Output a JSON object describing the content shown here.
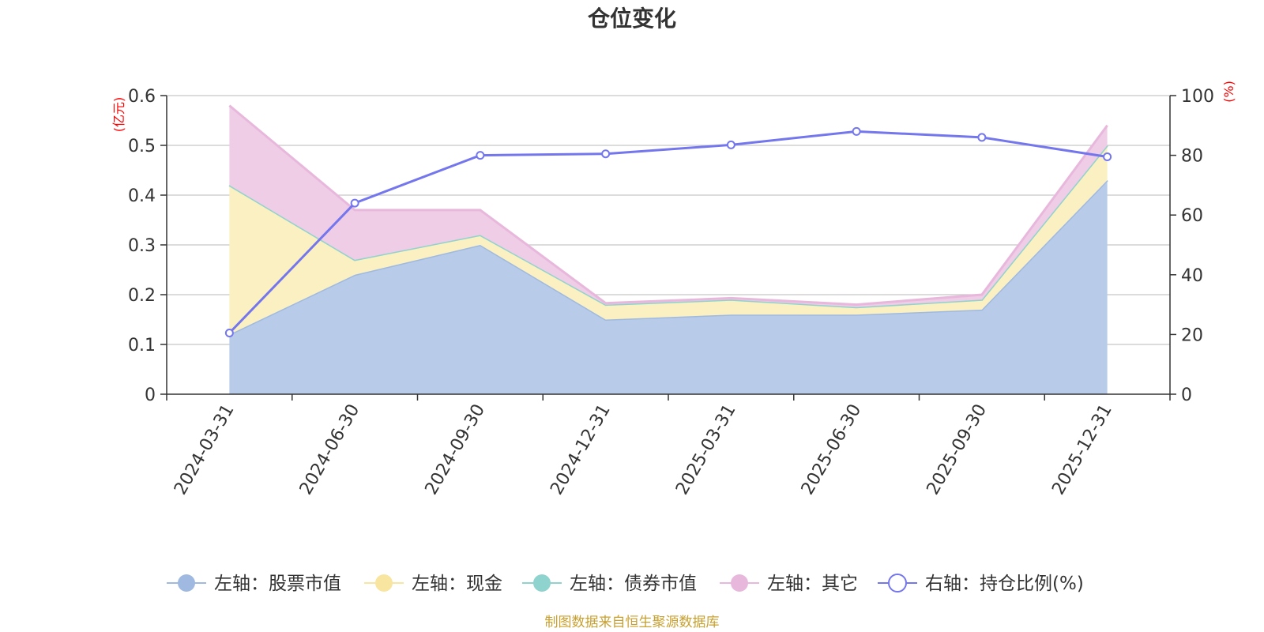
{
  "chart_data": {
    "type": "area",
    "title": "仓位变化",
    "categories": [
      "2024-03-31",
      "2024-06-30",
      "2024-09-30",
      "2024-12-31",
      "2025-03-31",
      "2025-06-30",
      "2025-09-30",
      "2025-12-31"
    ],
    "left_axis": {
      "unit": "(亿元)",
      "ylim": [
        0,
        0.6
      ],
      "ticks": [
        "0",
        "0.1",
        "0.2",
        "0.3",
        "0.4",
        "0.5",
        "0.6"
      ],
      "tick_values": [
        0,
        0.1,
        0.2,
        0.3,
        0.4,
        0.5,
        0.6
      ]
    },
    "right_axis": {
      "unit": "(%)",
      "ylim": [
        0,
        100
      ],
      "ticks": [
        "0",
        "20",
        "40",
        "60",
        "80",
        "100"
      ],
      "tick_values": [
        0,
        20,
        40,
        60,
        80,
        100
      ]
    },
    "series": [
      {
        "name": "左轴：股票市值",
        "axis": "left",
        "kind": "stacked-area",
        "color": "#9fb9e0",
        "fill": "#b8cce9",
        "values": [
          0.12,
          0.24,
          0.3,
          0.15,
          0.16,
          0.16,
          0.17,
          0.43
        ]
      },
      {
        "name": "左轴：现金",
        "axis": "left",
        "kind": "stacked-area",
        "color": "#f8e6a0",
        "fill": "#fbf0c2",
        "values": [
          0.3,
          0.03,
          0.02,
          0.03,
          0.03,
          0.015,
          0.02,
          0.07
        ]
      },
      {
        "name": "左轴：债券市值",
        "axis": "left",
        "kind": "stacked-area",
        "color": "#8fd3cf",
        "fill": "#b8e6e3",
        "values": [
          0,
          0,
          0,
          0,
          0,
          0,
          0,
          0
        ]
      },
      {
        "name": "左轴：其它",
        "axis": "left",
        "kind": "stacked-area",
        "color": "#e8b8dc",
        "fill": "#efcde6",
        "values": [
          0.16,
          0.1,
          0.05,
          0.003,
          0.003,
          0.005,
          0.01,
          0.04
        ]
      },
      {
        "name": "右轴：持仓比例(%)",
        "axis": "right",
        "kind": "line",
        "color": "#7476ee",
        "values": [
          20.5,
          64,
          80,
          80.5,
          83.5,
          88,
          86,
          79.5
        ]
      }
    ],
    "legend_position": "bottom-center"
  },
  "footer": {
    "source": "制图数据来自恒生聚源数据库"
  }
}
